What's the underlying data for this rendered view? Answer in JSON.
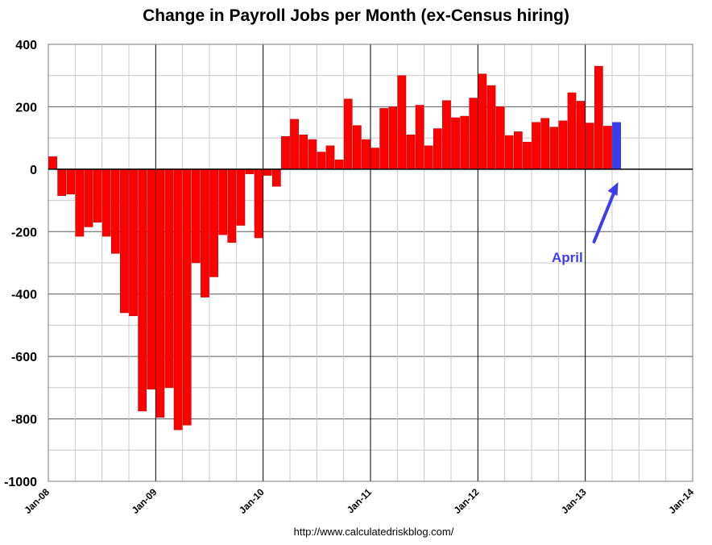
{
  "chart_data": {
    "type": "bar",
    "title": "Change in Payroll Jobs per Month (ex-Census hiring)",
    "xlabel": "",
    "ylabel": "",
    "ylim": [
      -1000,
      400
    ],
    "y_ticks": [
      400,
      200,
      0,
      -200,
      -400,
      -600,
      -800,
      -1000
    ],
    "y_tick_labels": [
      "400",
      "200",
      "0",
      "-200",
      "-400",
      "-600",
      "-800",
      "-1000"
    ],
    "x_tick_labels": [
      "Jan-08",
      "Jan-09",
      "Jan-10",
      "Jan-11",
      "Jan-12",
      "Jan-13",
      "Jan-14"
    ],
    "grid": true,
    "series": [
      {
        "color": "#ff0000",
        "categories": [
          "Jan-08",
          "Feb-08",
          "Mar-08",
          "Apr-08",
          "May-08",
          "Jun-08",
          "Jul-08",
          "Aug-08",
          "Sep-08",
          "Oct-08",
          "Nov-08",
          "Dec-08",
          "Jan-09",
          "Feb-09",
          "Mar-09",
          "Apr-09",
          "May-09",
          "Jun-09",
          "Jul-09",
          "Aug-09",
          "Sep-09",
          "Oct-09",
          "Nov-09",
          "Dec-09",
          "Jan-10",
          "Feb-10",
          "Mar-10",
          "Apr-10",
          "May-10",
          "Jun-10",
          "Jul-10",
          "Aug-10",
          "Sep-10",
          "Oct-10",
          "Nov-10",
          "Dec-10",
          "Jan-11",
          "Feb-11",
          "Mar-11",
          "Apr-11",
          "May-11",
          "Jun-11",
          "Jul-11",
          "Aug-11",
          "Sep-11",
          "Oct-11",
          "Nov-11",
          "Dec-11",
          "Jan-12",
          "Feb-12",
          "Mar-12",
          "Apr-12",
          "May-12",
          "Jun-12",
          "Jul-12",
          "Aug-12",
          "Sep-12",
          "Oct-12",
          "Nov-12",
          "Dec-12",
          "Jan-13",
          "Feb-13",
          "Mar-13"
        ],
        "values": [
          40,
          -85,
          -80,
          -215,
          -185,
          -170,
          -215,
          -270,
          -460,
          -470,
          -775,
          -705,
          -795,
          -700,
          -835,
          -820,
          -300,
          -410,
          -345,
          -210,
          -235,
          -180,
          -15,
          -220,
          -20,
          -55,
          105,
          160,
          110,
          95,
          55,
          75,
          30,
          225,
          140,
          95,
          68,
          195,
          200,
          300,
          110,
          205,
          75,
          130,
          220,
          165,
          170,
          228,
          305,
          268,
          200,
          108,
          120,
          87,
          150,
          163,
          135,
          155,
          245,
          218,
          148,
          330,
          138
        ]
      },
      {
        "color": "#3c3cf0",
        "categories": [
          "Apr-13"
        ],
        "values": [
          150
        ]
      }
    ],
    "annotation": {
      "text": "April",
      "color": "#3d3df0"
    }
  },
  "source_note": "http://www.calculatedriskblog.com/"
}
